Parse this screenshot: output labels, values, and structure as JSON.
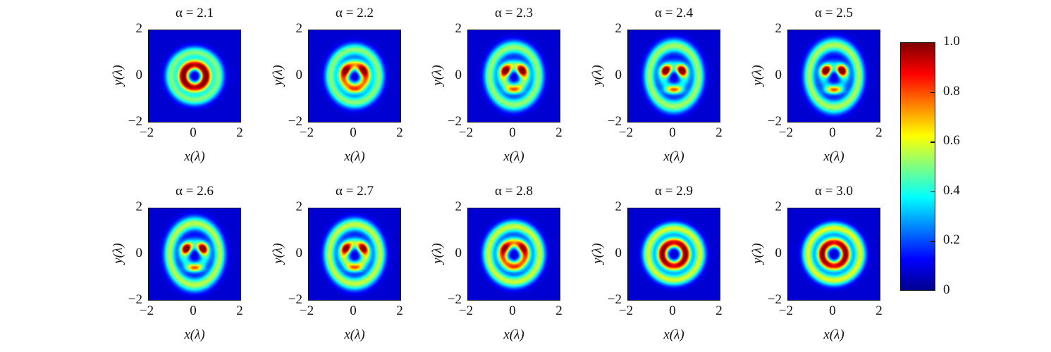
{
  "chart_data": {
    "type": "heatmap",
    "colormap": "jet",
    "xlabel": "x(λ)",
    "ylabel": "y(λ)",
    "xlim": [
      -2,
      2
    ],
    "ylim": [
      -2,
      2
    ],
    "xticks": [
      "−2",
      "0",
      "2"
    ],
    "yticks": [
      "2",
      "0",
      "−2"
    ],
    "panels": [
      {
        "title": "α = 2.1",
        "alpha": 2.1
      },
      {
        "title": "α = 2.2",
        "alpha": 2.2
      },
      {
        "title": "α = 2.3",
        "alpha": 2.3
      },
      {
        "title": "α = 2.4",
        "alpha": 2.4
      },
      {
        "title": "α = 2.5",
        "alpha": 2.5
      },
      {
        "title": "α = 2.6",
        "alpha": 2.6
      },
      {
        "title": "α = 2.7",
        "alpha": 2.7
      },
      {
        "title": "α = 2.8",
        "alpha": 2.8
      },
      {
        "title": "α = 2.9",
        "alpha": 2.9
      },
      {
        "title": "α = 3.0",
        "alpha": 3.0
      }
    ],
    "colorbar": {
      "range": [
        0,
        1
      ],
      "ticks": [
        "0",
        "0.2",
        "0.4",
        "0.6",
        "0.8",
        "1.0"
      ]
    }
  }
}
